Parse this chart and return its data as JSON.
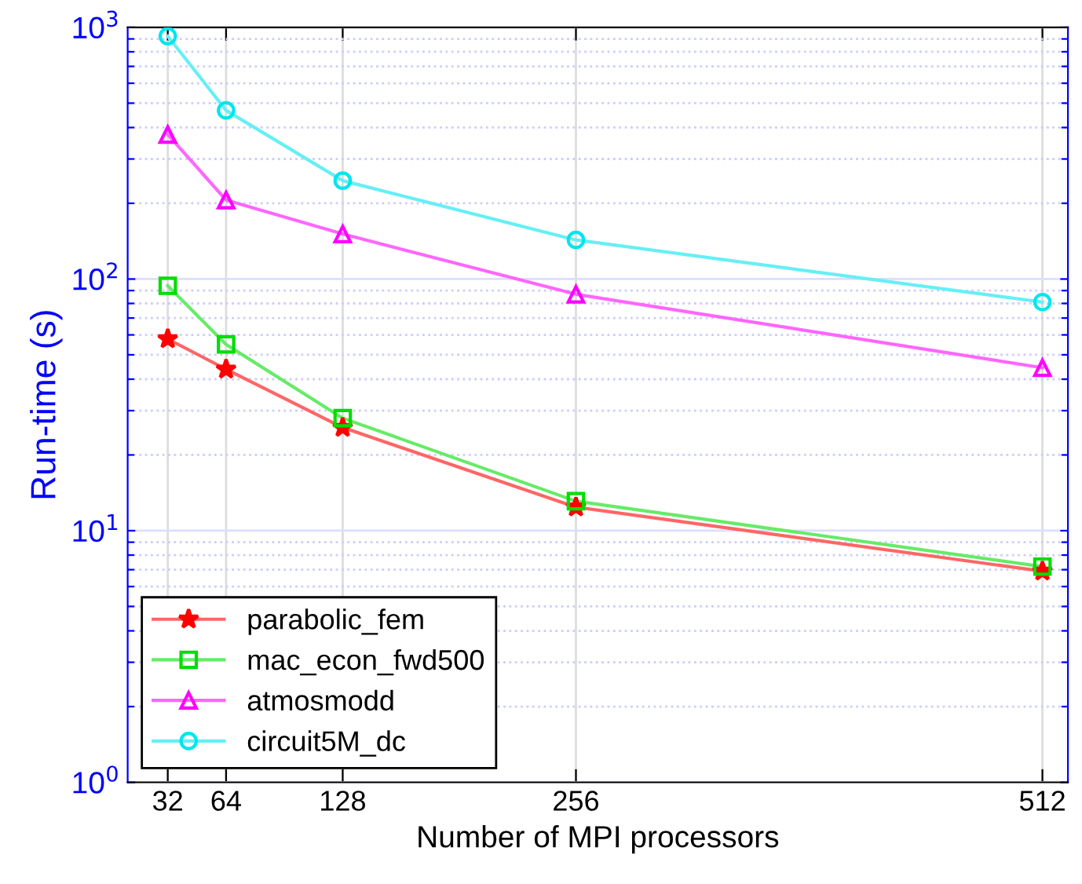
{
  "chart_data": {
    "type": "line",
    "xlabel": "Number of MPI processors",
    "ylabel": "Run-time (s)",
    "x": [
      32,
      64,
      128,
      256,
      512
    ],
    "series": [
      {
        "name": "parabolic_fem",
        "color": "#ff0000",
        "marker": "star",
        "values": [
          57.8,
          43.8,
          25.7,
          12.4,
          6.9
        ]
      },
      {
        "name": "mac_econ_fwd500",
        "color": "#00dd00",
        "marker": "square",
        "values": [
          94,
          55,
          28,
          13.1,
          7.2
        ]
      },
      {
        "name": "atmosmodd",
        "color": "#ff00ff",
        "marker": "triangle",
        "values": [
          375,
          206,
          151,
          87,
          44.4
        ]
      },
      {
        "name": "circuit5M_dc",
        "color": "#00e5ee",
        "marker": "circle",
        "values": [
          923,
          468,
          246,
          143,
          81
        ]
      }
    ],
    "log": "y",
    "xlim": [
      10,
      526
    ],
    "xticks": [
      32,
      64,
      128,
      256,
      512
    ],
    "ylim": [
      1,
      1000
    ],
    "yticks": [
      {
        "value": 1,
        "label": "10$^{0}$"
      },
      {
        "value": 2,
        "label": null
      },
      {
        "value": 3,
        "label": null
      },
      {
        "value": 4,
        "label": null
      },
      {
        "value": 5,
        "label": null
      },
      {
        "value": 6,
        "label": null
      },
      {
        "value": 7,
        "label": null
      },
      {
        "value": 8,
        "label": null
      },
      {
        "value": 9,
        "label": null
      },
      {
        "value": 10,
        "label": "10$^{1}$"
      },
      {
        "value": 20,
        "label": null
      },
      {
        "value": 30,
        "label": null
      },
      {
        "value": 40,
        "label": null
      },
      {
        "value": 50,
        "label": null
      },
      {
        "value": 60,
        "label": null
      },
      {
        "value": 70,
        "label": null
      },
      {
        "value": 80,
        "label": null
      },
      {
        "value": 90,
        "label": null
      },
      {
        "value": 100,
        "label": "10$^{2}$"
      },
      {
        "value": 200,
        "label": null
      },
      {
        "value": 300,
        "label": null
      },
      {
        "value": 400,
        "label": null
      },
      {
        "value": 500,
        "label": null
      },
      {
        "value": 600,
        "label": null
      },
      {
        "value": 700,
        "label": null
      },
      {
        "value": 800,
        "label": null
      },
      {
        "value": 900,
        "label": null
      },
      {
        "value": 1000,
        "label": "10$^{3}$"
      }
    ],
    "grid": true,
    "legend": "bottom left",
    "line_style": "solid"
  }
}
